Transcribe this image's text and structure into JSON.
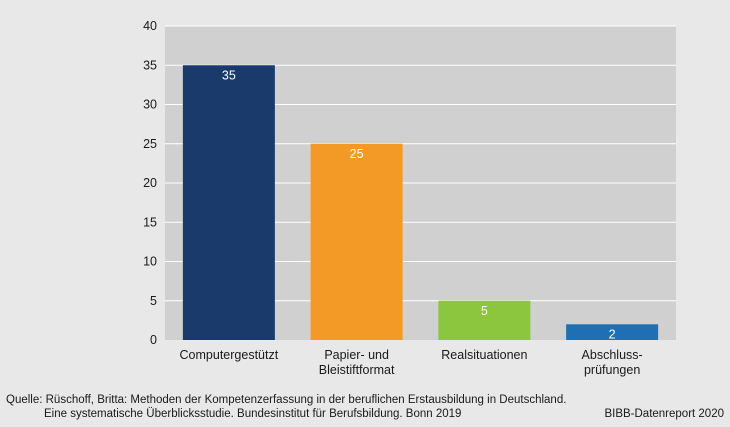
{
  "chart_data": {
    "type": "bar",
    "categories": [
      [
        "Computergestützt"
      ],
      [
        "Papier- und",
        "Bleistiftformat"
      ],
      [
        "Realsituationen"
      ],
      [
        "Abschluss-",
        "prüfungen"
      ]
    ],
    "values": [
      35,
      25,
      5,
      2
    ],
    "value_labels": [
      "35",
      "25",
      "5",
      "2"
    ],
    "colors": [
      "#1a3a6b",
      "#f39a26",
      "#8cc63e",
      "#1f6fb5"
    ],
    "label_colors": [
      "#ffffff",
      "#ffffff",
      "#ffffff",
      "#ffffff"
    ],
    "ylim": [
      0,
      40
    ],
    "yticks": [
      0,
      5,
      10,
      15,
      20,
      25,
      30,
      35,
      40
    ],
    "grid": true,
    "title": "",
    "xlabel": "",
    "ylabel": ""
  },
  "source": {
    "line1": "Quelle: Rüschoff, Britta: Methoden der Kompetenzerfassung in der beruflichen Erstausbildung in Deutschland.",
    "line2": "Eine systematische Überblicksstudie. Bundesinstitut für Berufsbildung. Bonn 2019"
  },
  "credit": "BIBB-Datenreport 2020",
  "colors": {
    "background": "#e8e8e8",
    "plot_background": "#d0d0d0",
    "gridline": "#ffffff"
  }
}
